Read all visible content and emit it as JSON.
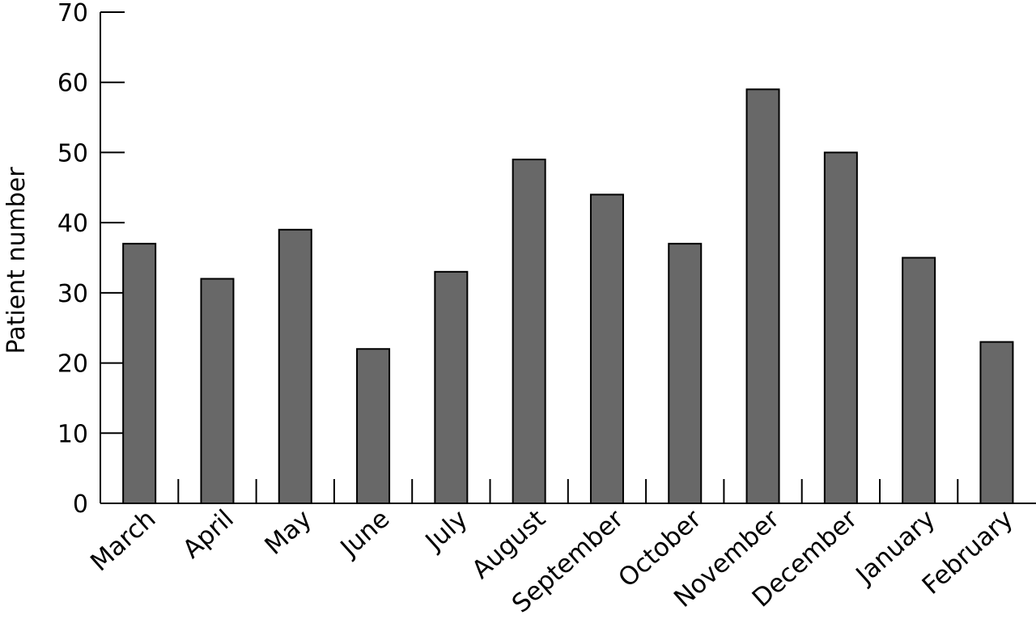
{
  "chart_data": {
    "type": "bar",
    "title": "",
    "xlabel": "",
    "ylabel": "Patient number",
    "ylim": [
      0,
      70
    ],
    "yticks": [
      0,
      10,
      20,
      30,
      40,
      50,
      60,
      70
    ],
    "categories": [
      "March",
      "April",
      "May",
      "June",
      "July",
      "August",
      "September",
      "October",
      "November",
      "December",
      "January",
      "February"
    ],
    "values": [
      37,
      32,
      39,
      22,
      33,
      49,
      44,
      37,
      59,
      50,
      35,
      23
    ],
    "bar_color": "#686868",
    "grid": false,
    "legend": "none"
  }
}
